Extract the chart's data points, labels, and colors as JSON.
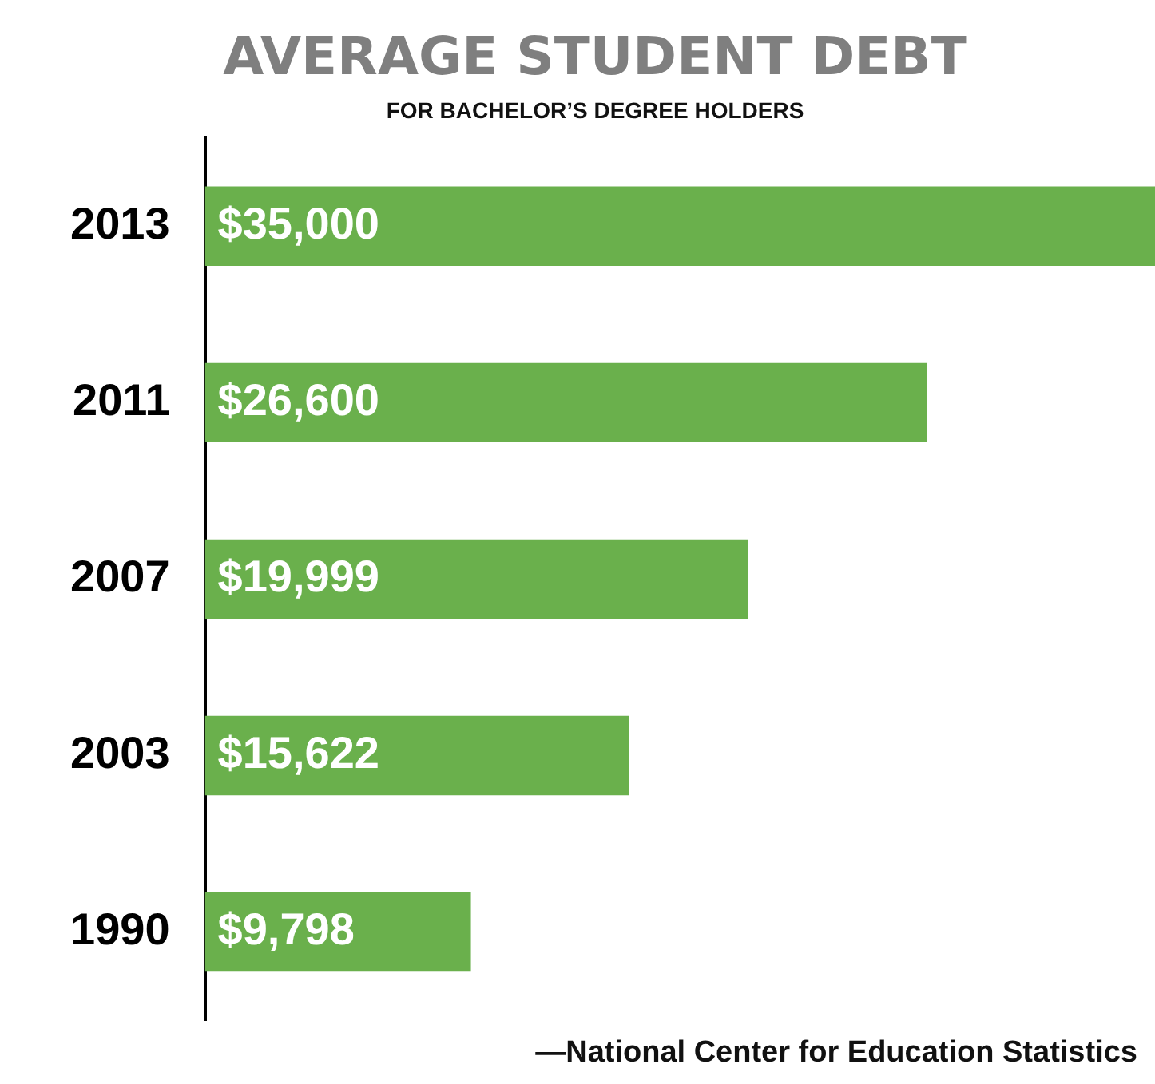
{
  "chart_data": {
    "type": "bar",
    "orientation": "horizontal",
    "title": "AVERAGE STUDENT DEBT",
    "subtitle": "FOR BACHELOR’S DEGREE HOLDERS",
    "categories": [
      "2013",
      "2011",
      "2007",
      "2003",
      "1990"
    ],
    "values": [
      35000,
      26600,
      19999,
      15622,
      9798
    ],
    "value_labels": [
      "$35,000",
      "$26,600",
      "$19,999",
      "$15,622",
      "$9,798"
    ],
    "color": "#6ab04c",
    "legend": false,
    "annotations": [
      "—National Center for Education Statistics"
    ]
  }
}
